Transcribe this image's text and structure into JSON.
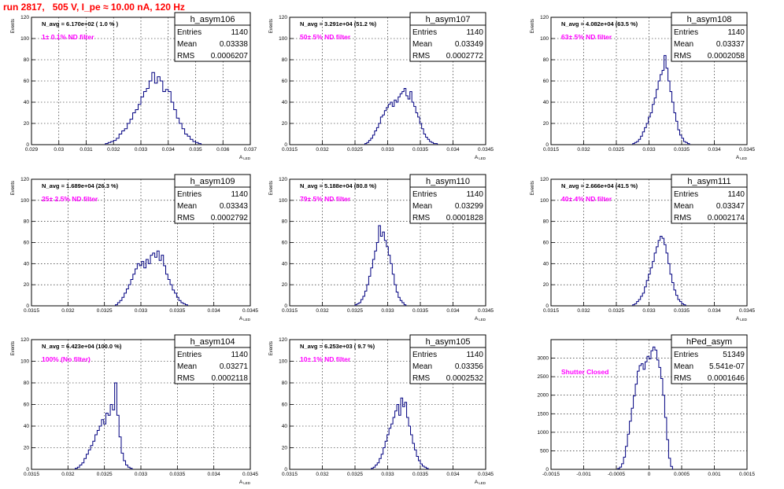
{
  "page": {
    "title": "run 2817,   505 V, I_pe ≈ 10.00 nA, 120 Hz",
    "colors": {
      "title": "#ff0000",
      "annotation": "#ff00ff",
      "histogram": "#000080",
      "axis": "#000000",
      "grid": "#000000"
    }
  },
  "chart_data": [
    {
      "type": "histogram",
      "name": "h_asym106",
      "stats": {
        "entries_label": "Entries",
        "entries": "1140",
        "mean_label": "Mean",
        "mean": "0.03338",
        "rms_label": "RMS",
        "rms": "0.0006207"
      },
      "navg": "N_avg = 6.170e+02 ( 1.0 % )",
      "annotation": "1± 0.1% ND filter",
      "ylabel": "Events",
      "xlabel": "A",
      "xlabel_sub": "LED",
      "xlim": [
        0.029,
        0.037
      ],
      "ylim": [
        0,
        120
      ],
      "xticks": [
        0.029,
        0.03,
        0.031,
        0.032,
        0.033,
        0.034,
        0.035,
        0.036,
        0.037
      ],
      "xtick_labels": [
        "0.029",
        "0.03",
        "0.031",
        "0.032",
        "0.033",
        "0.034",
        "0.035",
        "0.036",
        "0.037"
      ],
      "yticks": [
        0,
        20,
        40,
        60,
        80,
        100,
        120
      ],
      "ytick_labels": [
        "0",
        "20",
        "40",
        "60",
        "80",
        "100",
        "120"
      ],
      "bin_width": 0.0001,
      "bin_start": 0.0317,
      "counts": [
        1,
        2,
        3,
        4,
        6,
        10,
        13,
        15,
        20,
        24,
        30,
        33,
        38,
        45,
        50,
        53,
        60,
        68,
        58,
        64,
        60,
        50,
        52,
        50,
        40,
        33,
        25,
        20,
        15,
        10,
        8,
        5,
        3,
        2,
        1
      ]
    },
    {
      "type": "histogram",
      "name": "h_asym107",
      "stats": {
        "entries_label": "Entries",
        "entries": "1140",
        "mean_label": "Mean",
        "mean": "0.03349",
        "rms_label": "RMS",
        "rms": "0.0002772"
      },
      "navg": "N_avg = 3.291e+04 (51.2 %)",
      "annotation": "50± 5% ND filter",
      "ylabel": "Events",
      "xlabel": "A",
      "xlabel_sub": "LED",
      "xlim": [
        0.0315,
        0.0345
      ],
      "ylim": [
        0,
        120
      ],
      "xticks": [
        0.0315,
        0.032,
        0.0325,
        0.033,
        0.0335,
        0.034,
        0.0345
      ],
      "xtick_labels": [
        "0.0315",
        "0.032",
        "0.0325",
        "0.033",
        "0.0335",
        "0.034",
        "0.0345"
      ],
      "yticks": [
        0,
        20,
        40,
        60,
        80,
        100,
        120
      ],
      "ytick_labels": [
        "0",
        "20",
        "40",
        "60",
        "80",
        "100",
        "120"
      ],
      "bin_width": 3e-05,
      "bin_start": 0.03265,
      "counts": [
        1,
        2,
        4,
        6,
        9,
        13,
        16,
        20,
        26,
        28,
        32,
        35,
        38,
        40,
        36,
        42,
        40,
        45,
        48,
        50,
        53,
        46,
        43,
        50,
        40,
        36,
        30,
        26,
        20,
        15,
        10,
        7,
        5,
        3,
        2,
        1,
        1
      ]
    },
    {
      "type": "histogram",
      "name": "h_asym108",
      "stats": {
        "entries_label": "Entries",
        "entries": "1140",
        "mean_label": "Mean",
        "mean": "0.03337",
        "rms_label": "RMS",
        "rms": "0.0002058"
      },
      "navg": "N_avg = 4.082e+04 (63.5 %)",
      "annotation": "63± 5% ND filter",
      "ylabel": "Events",
      "xlabel": "A",
      "xlabel_sub": "LED",
      "xlim": [
        0.0315,
        0.0345
      ],
      "ylim": [
        0,
        120
      ],
      "xticks": [
        0.0315,
        0.032,
        0.0325,
        0.033,
        0.0335,
        0.034,
        0.0345
      ],
      "xtick_labels": [
        "0.0315",
        "0.032",
        "0.0325",
        "0.033",
        "0.0335",
        "0.034",
        "0.0345"
      ],
      "yticks": [
        0,
        20,
        40,
        60,
        80,
        100,
        120
      ],
      "ytick_labels": [
        "0",
        "20",
        "40",
        "60",
        "80",
        "100",
        "120"
      ],
      "bin_width": 3e-05,
      "bin_start": 0.03275,
      "counts": [
        1,
        2,
        3,
        5,
        8,
        12,
        16,
        20,
        26,
        30,
        38,
        44,
        52,
        60,
        66,
        70,
        84,
        72,
        60,
        50,
        40,
        30,
        22,
        14,
        9,
        6,
        3,
        2,
        1
      ]
    },
    {
      "type": "histogram",
      "name": "h_asym109",
      "stats": {
        "entries_label": "Entries",
        "entries": "1140",
        "mean_label": "Mean",
        "mean": "0.03343",
        "rms_label": "RMS",
        "rms": "0.0002792"
      },
      "navg": "N_avg = 1.689e+04 (26.3 %)",
      "annotation": "25± 2.5% ND filter",
      "ylabel": "Events",
      "xlabel": "A",
      "xlabel_sub": "LED",
      "xlim": [
        0.0315,
        0.0345
      ],
      "ylim": [
        0,
        120
      ],
      "xticks": [
        0.0315,
        0.032,
        0.0325,
        0.033,
        0.0335,
        0.034,
        0.0345
      ],
      "xtick_labels": [
        "0.0315",
        "0.032",
        "0.0325",
        "0.033",
        "0.0335",
        "0.034",
        "0.0345"
      ],
      "yticks": [
        0,
        20,
        40,
        60,
        80,
        100,
        120
      ],
      "ytick_labels": [
        "0",
        "20",
        "40",
        "60",
        "80",
        "100",
        "120"
      ],
      "bin_width": 3e-05,
      "bin_start": 0.03265,
      "counts": [
        1,
        3,
        5,
        8,
        12,
        16,
        20,
        25,
        30,
        35,
        40,
        38,
        42,
        36,
        44,
        40,
        48,
        50,
        46,
        52,
        43,
        48,
        38,
        30,
        25,
        20,
        15,
        12,
        8,
        5,
        3,
        2,
        1
      ]
    },
    {
      "type": "histogram",
      "name": "h_asym110",
      "stats": {
        "entries_label": "Entries",
        "entries": "1140",
        "mean_label": "Mean",
        "mean": "0.03299",
        "rms_label": "RMS",
        "rms": "0.0001828"
      },
      "navg": "N_avg = 5.188e+04 (80.8 %)",
      "annotation": "79± 5% ND filter",
      "ylabel": "Events",
      "xlabel": "A",
      "xlabel_sub": "LED",
      "xlim": [
        0.0315,
        0.0345
      ],
      "ylim": [
        0,
        120
      ],
      "xticks": [
        0.0315,
        0.032,
        0.0325,
        0.033,
        0.0335,
        0.034,
        0.0345
      ],
      "xtick_labels": [
        "0.0315",
        "0.032",
        "0.0325",
        "0.033",
        "0.0335",
        "0.034",
        "0.0345"
      ],
      "yticks": [
        0,
        20,
        40,
        60,
        80,
        100,
        120
      ],
      "ytick_labels": [
        "0",
        "20",
        "40",
        "60",
        "80",
        "100",
        "120"
      ],
      "bin_width": 3e-05,
      "bin_start": 0.0325,
      "counts": [
        1,
        2,
        3,
        6,
        9,
        14,
        20,
        28,
        36,
        44,
        52,
        60,
        76,
        66,
        70,
        62,
        56,
        48,
        40,
        30,
        20,
        13,
        8,
        5,
        3,
        1
      ]
    },
    {
      "type": "histogram",
      "name": "h_asym111",
      "stats": {
        "entries_label": "Entries",
        "entries": "1140",
        "mean_label": "Mean",
        "mean": "0.03347",
        "rms_label": "RMS",
        "rms": "0.0002174"
      },
      "navg": "N_avg = 2.666e+04 (41.5 %)",
      "annotation": "40± 4% ND filter",
      "ylabel": "Events",
      "xlabel": "A",
      "xlabel_sub": "LED",
      "xlim": [
        0.0315,
        0.0345
      ],
      "ylim": [
        0,
        120
      ],
      "xticks": [
        0.0315,
        0.032,
        0.0325,
        0.033,
        0.0335,
        0.034,
        0.0345
      ],
      "xtick_labels": [
        "0.0315",
        "0.032",
        "0.0325",
        "0.033",
        "0.0335",
        "0.034",
        "0.0345"
      ],
      "yticks": [
        0,
        20,
        40,
        60,
        80,
        100,
        120
      ],
      "ytick_labels": [
        "0",
        "20",
        "40",
        "60",
        "80",
        "100",
        "120"
      ],
      "bin_width": 3e-05,
      "bin_start": 0.03275,
      "counts": [
        1,
        2,
        4,
        6,
        9,
        12,
        18,
        24,
        30,
        36,
        42,
        50,
        56,
        62,
        66,
        64,
        58,
        50,
        40,
        30,
        22,
        15,
        10,
        6,
        4,
        2,
        1
      ]
    },
    {
      "type": "histogram",
      "name": "h_asym104",
      "stats": {
        "entries_label": "Entries",
        "entries": "1140",
        "mean_label": "Mean",
        "mean": "0.03271",
        "rms_label": "RMS",
        "rms": "0.0002118"
      },
      "navg": "N_avg = 6.423e+04 (100.0 %)",
      "annotation": "100% (No filter)",
      "ylabel": "Events",
      "xlabel": "A",
      "xlabel_sub": "LED",
      "xlim": [
        0.0315,
        0.0345
      ],
      "ylim": [
        0,
        120
      ],
      "xticks": [
        0.0315,
        0.032,
        0.0325,
        0.033,
        0.0335,
        0.034,
        0.0345
      ],
      "xtick_labels": [
        "0.0315",
        "0.032",
        "0.0325",
        "0.033",
        "0.0335",
        "0.034",
        "0.0345"
      ],
      "yticks": [
        0,
        20,
        40,
        60,
        80,
        100,
        120
      ],
      "ytick_labels": [
        "0",
        "20",
        "40",
        "60",
        "80",
        "100",
        "120"
      ],
      "bin_width": 3e-05,
      "bin_start": 0.0321,
      "counts": [
        1,
        2,
        4,
        6,
        10,
        14,
        18,
        22,
        26,
        32,
        36,
        40,
        46,
        42,
        52,
        50,
        60,
        55,
        80,
        50,
        30,
        15,
        8,
        4,
        2,
        1
      ]
    },
    {
      "type": "histogram",
      "name": "h_asym105",
      "stats": {
        "entries_label": "Entries",
        "entries": "1140",
        "mean_label": "Mean",
        "mean": "0.03356",
        "rms_label": "RMS",
        "rms": "0.0002532"
      },
      "navg": "N_avg = 6.253e+03 ( 9.7 %)",
      "annotation": "10± 1% ND filter",
      "ylabel": "Events",
      "xlabel": "A",
      "xlabel_sub": "LED",
      "xlim": [
        0.0315,
        0.0345
      ],
      "ylim": [
        0,
        120
      ],
      "xticks": [
        0.0315,
        0.032,
        0.0325,
        0.033,
        0.0335,
        0.034,
        0.0345
      ],
      "xtick_labels": [
        "0.0315",
        "0.032",
        "0.0325",
        "0.033",
        "0.0335",
        "0.034",
        "0.0345"
      ],
      "yticks": [
        0,
        20,
        40,
        60,
        80,
        100,
        120
      ],
      "ytick_labels": [
        "0",
        "20",
        "40",
        "60",
        "80",
        "100",
        "120"
      ],
      "bin_width": 3e-05,
      "bin_start": 0.03275,
      "counts": [
        1,
        2,
        4,
        6,
        10,
        14,
        20,
        26,
        32,
        38,
        42,
        48,
        54,
        60,
        50,
        66,
        58,
        62,
        48,
        40,
        32,
        24,
        18,
        12,
        8,
        5,
        3,
        2,
        1
      ]
    },
    {
      "type": "histogram",
      "name": "hPed_asym",
      "stats": {
        "entries_label": "Entries",
        "entries": "51349",
        "mean_label": "Mean",
        "mean": "5.541e-07",
        "rms_label": "RMS",
        "rms": "0.0001646"
      },
      "navg": "",
      "annotation": "Shutter Closed",
      "ylabel": "",
      "xlabel": "",
      "xlabel_sub": "",
      "xlim": [
        -0.0015,
        0.0015
      ],
      "ylim": [
        0,
        3500
      ],
      "xticks": [
        -0.0015,
        -0.001,
        -0.0005,
        0,
        0.0005,
        0.001,
        0.0015
      ],
      "xtick_labels": [
        "-0.0015",
        "-0.001",
        "-0.0005",
        "0",
        "0.0005",
        "0.001",
        "0.0015"
      ],
      "yticks": [
        0,
        500,
        1000,
        1500,
        2000,
        2500,
        3000
      ],
      "ytick_labels": [
        "0",
        "500",
        "1000",
        "1500",
        "2000",
        "2500",
        "3000"
      ],
      "bin_width": 3e-05,
      "bin_start": -0.00048,
      "counts": [
        20,
        60,
        150,
        330,
        620,
        950,
        1300,
        1650,
        1980,
        2300,
        2650,
        2800,
        2850,
        2700,
        2900,
        3050,
        2980,
        3200,
        3300,
        3220,
        2950,
        2750,
        2450,
        2000,
        1400,
        800,
        300,
        80
      ]
    }
  ]
}
